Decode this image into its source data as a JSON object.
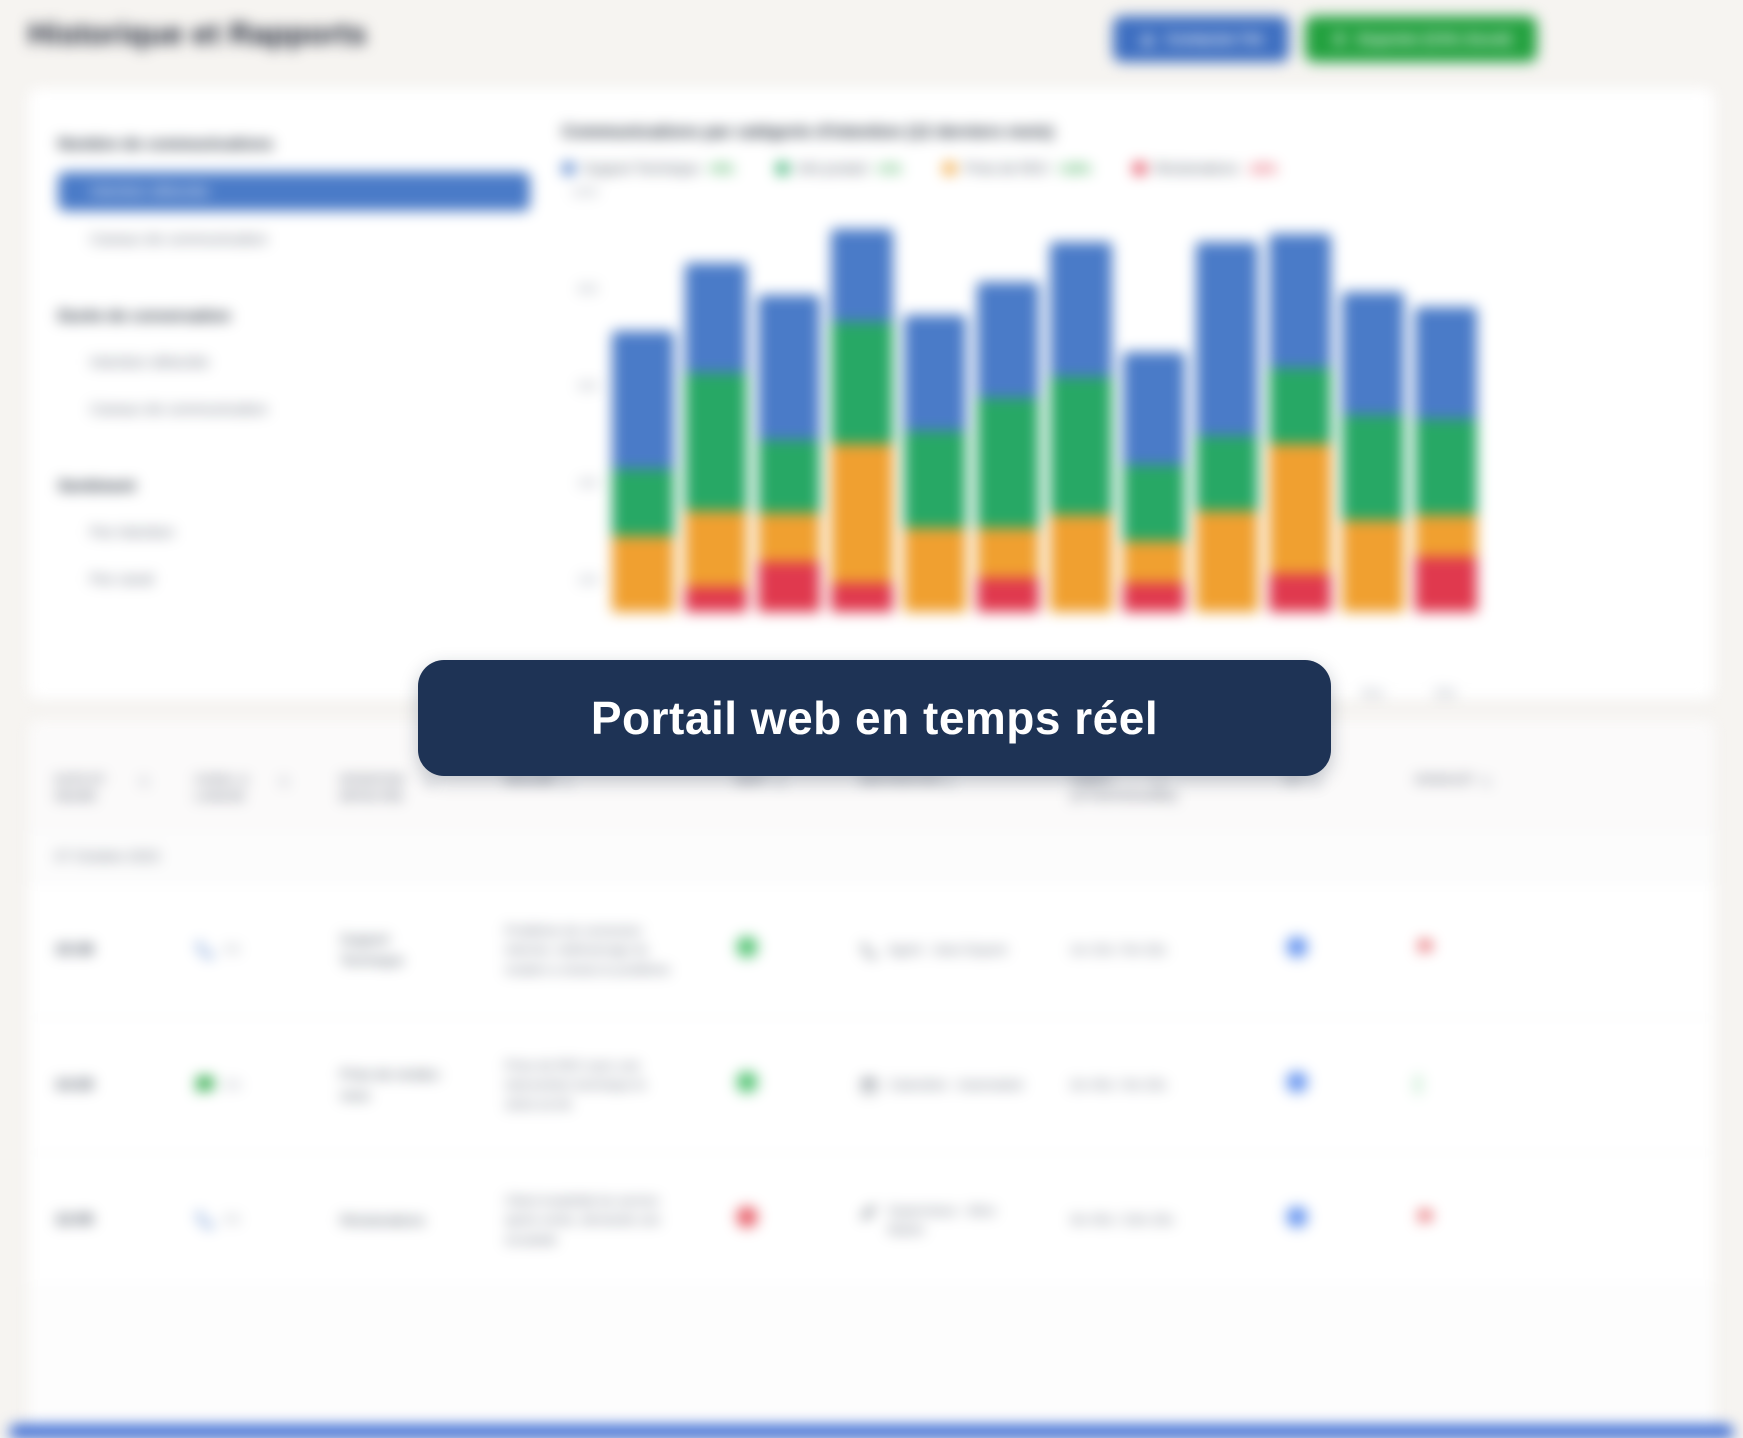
{
  "header": {
    "title": "Historique et Rapports",
    "ai_button_label": "Contacter l'IA",
    "export_button_label": "Exporter (CSV, Excel)"
  },
  "sidebar": {
    "sections": [
      {
        "title": "Nombre de communications",
        "items": [
          {
            "label": "Intention détectée",
            "selected": true
          },
          {
            "label": "Canaux de communication",
            "selected": false
          }
        ]
      },
      {
        "title": "Durée de conversation",
        "items": [
          {
            "label": "Intention détectée",
            "selected": false
          },
          {
            "label": "Canaux de communication",
            "selected": false
          }
        ]
      },
      {
        "title": "Sentiment",
        "items": [
          {
            "label": "Par intention",
            "selected": false
          },
          {
            "label": "Par canal",
            "selected": false
          }
        ]
      }
    ]
  },
  "chart_data": {
    "type": "bar",
    "stacked": true,
    "title": "Communications par catégorie d'intention (12 derniers mois)",
    "categories": [
      "Jan",
      "Fév",
      "Mar",
      "Avr",
      "Mai",
      "Juin",
      "Juil",
      "Aoû",
      "Sep",
      "Oct",
      "Nov",
      "Déc"
    ],
    "series": [
      {
        "name": "Support Technique",
        "color": "#4a7bc8",
        "change": "+5%",
        "change_color": "#23a13f",
        "values": [
          330,
          260,
          345,
          222,
          278,
          277,
          321,
          270,
          461,
          320,
          293,
          267
        ]
      },
      {
        "name": "Info produit",
        "color": "#27a865",
        "change": "+1%",
        "change_color": "#23a13f",
        "values": [
          160,
          330,
          175,
          290,
          230,
          310,
          330,
          180,
          180,
          180,
          250,
          230
        ]
      },
      {
        "name": "Prise de RDV",
        "color": "#f0a030",
        "change": "+16%",
        "change_color": "#23a13f",
        "values": [
          180,
          180,
          115,
          330,
          200,
          120,
          230,
          100,
          240,
          310,
          220,
          100
        ]
      },
      {
        "name": "Réclamations",
        "color": "#e0394e",
        "change": "-16%",
        "change_color": "#e0394e",
        "values": [
          0,
          60,
          120,
          70,
          0,
          80,
          0,
          70,
          0,
          90,
          0,
          130
        ]
      }
    ],
    "stack_order_bottom_to_top": [
      "Réclamations",
      "Prise de RDV",
      "Info produit",
      "Support Technique"
    ],
    "ylabel": "",
    "xlabel": "",
    "ylim": [
      0,
      1000
    ],
    "yticks": [
      0,
      200,
      400,
      600,
      800,
      1000
    ],
    "grid": false,
    "legend_position": "top"
  },
  "overlay": {
    "label": "Portail web en temps réel"
  },
  "table": {
    "columns": [
      {
        "label": "Date et heure",
        "sortable": true
      },
      {
        "label": "Canal & langue",
        "sortable": true
      },
      {
        "label": "Intention détectée",
        "sortable": true
      },
      {
        "label": "Résumé",
        "sortable": true
      },
      {
        "label": "Sent.",
        "sortable": true
      },
      {
        "label": "Destination",
        "sortable": true
      },
      {
        "label": "Temps (attente/durée)",
        "sortable": true
      },
      {
        "label": "IA?",
        "sortable": true
      },
      {
        "label": "Signalé?",
        "sortable": true
      }
    ],
    "group_label": "07 Octobre 2023",
    "rows": [
      {
        "time": "15:38",
        "channel": {
          "icon": "phone",
          "color": "#4a7bc8",
          "lang": "FR"
        },
        "intention": "Support Technique",
        "summary": "Problème de connexion internet, redémarrage du modem a résolu le problème",
        "sentiment": "positive",
        "destination": {
          "icon": "phone",
          "text": "Agent : Jean Dupont"
        },
        "duration": "1m 15s / 5m 32s",
        "ai": true,
        "flag": "flagged"
      },
      {
        "time": "14:20",
        "channel": {
          "icon": "chat",
          "color": "#27a844",
          "lang": "EN"
        },
        "intention": "Prise de rendez-vous",
        "summary": "Prise de RDV avec une intervention technique le 2023-10-05",
        "sentiment": "positive",
        "destination": {
          "icon": "calendar",
          "text": "Calendrier : Automatisé"
        },
        "duration": "2m 45s / 3m 20s",
        "ai": true,
        "flag": "ok"
      },
      {
        "time": "12:05",
        "channel": {
          "icon": "phone",
          "color": "#4a7bc8",
          "lang": "FR"
        },
        "intention": "Réclamations",
        "summary": "Client insatisfait du service après-vente, demande une escalade",
        "sentiment": "negative",
        "destination": {
          "icon": "pencil",
          "text": "Superviseur : Alice Martin"
        },
        "duration": "3m 45s / 10m 20s",
        "ai": true,
        "flag": "flagged"
      }
    ]
  }
}
